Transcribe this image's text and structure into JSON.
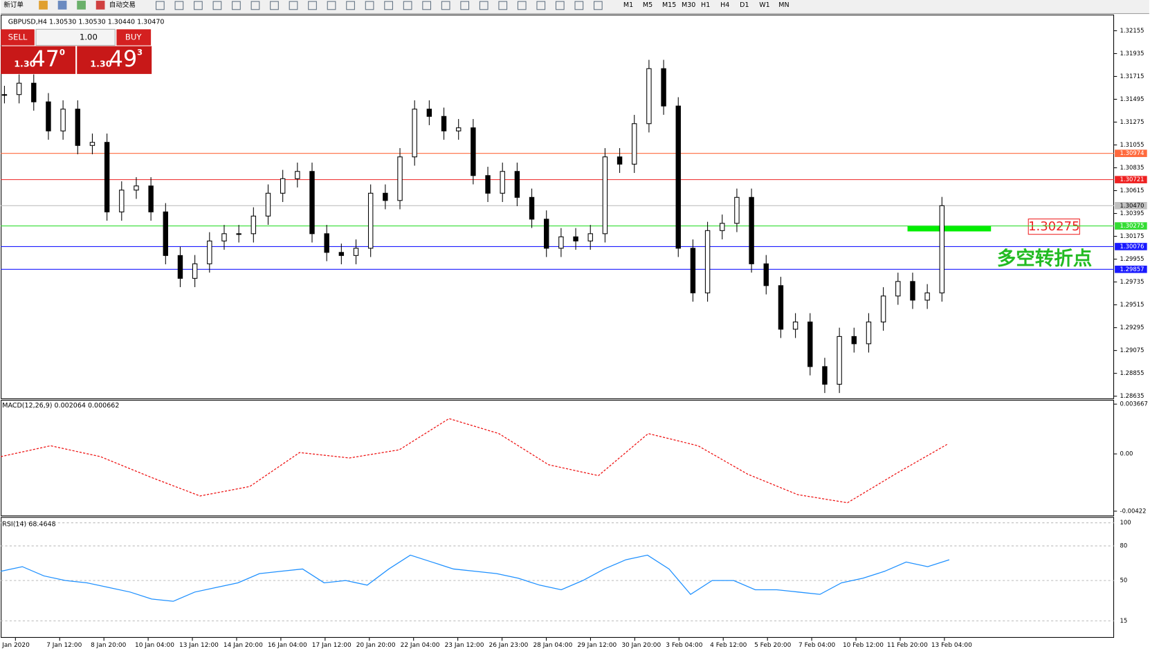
{
  "toolbar": {
    "new_order": "新订单",
    "auto_trading": "自动交易",
    "timeframes": [
      "M1",
      "M5",
      "M15",
      "M30",
      "H1",
      "H4",
      "D1",
      "W1",
      "MN"
    ]
  },
  "trade_panel": {
    "sell": "SELL",
    "buy": "BUY",
    "lot": "1.00",
    "sell_big": "1.30",
    "sell_pips": "47",
    "sell_frac": "0",
    "buy_big": "1.30",
    "buy_pips": "49",
    "buy_frac": "3"
  },
  "main_chart": {
    "header": "GBPUSD,H4  1.30530 1.30530 1.30440 1.30470",
    "ylim": [
      1.28614,
      1.32303
    ],
    "yticks": [
      1.32155,
      1.31935,
      1.31715,
      1.31495,
      1.31275,
      1.31055,
      1.30835,
      1.30615,
      1.30395,
      1.30175,
      1.29955,
      1.29735,
      1.29515,
      1.29295,
      1.29075,
      1.28855,
      1.28635
    ],
    "levels": [
      {
        "value": 1.30974,
        "color": "#ff6a3d"
      },
      {
        "value": 1.30721,
        "color": "#ee2222"
      },
      {
        "value": {
          "value": 1.3047,
          "label": "1.30470"
        },
        "color": "#c0c0c0"
      },
      {
        "value": 1.30275,
        "color": "#33dd33"
      },
      {
        "value": 1.30076,
        "color": "#1a1aff"
      },
      {
        "value": 1.29857,
        "color": "#1a1aff"
      }
    ],
    "closes": [
      1.3154,
      1.3165,
      1.3147,
      1.3119,
      1.314,
      1.3105,
      1.3108,
      1.3041,
      1.3062,
      1.3066,
      1.3041,
      1.2999,
      1.2977,
      1.2991,
      1.3013,
      1.302,
      1.302,
      1.3037,
      1.3059,
      1.3073,
      1.308,
      1.302,
      1.3002,
      1.2999,
      1.3006,
      1.3059,
      1.3052,
      1.3094,
      1.314,
      1.3133,
      1.3119,
      1.3122,
      1.3076,
      1.3059,
      1.308,
      1.3055,
      1.3034,
      1.3006,
      1.3017,
      1.3013,
      1.302,
      1.3094,
      1.3087,
      1.3126,
      1.3179,
      1.3143,
      1.3006,
      1.2963,
      1.3023,
      1.303,
      1.3055,
      1.2991,
      1.297,
      1.2928,
      1.2935,
      1.2892,
      1.2875,
      1.2921,
      1.2914,
      1.2935,
      1.296,
      1.2974,
      1.2956,
      1.2963,
      1.3047
    ],
    "annotation_price": "1.30275",
    "annotation_text": "多空转折点"
  },
  "macd": {
    "label": "MACD(12,26,9) 0.002064 0.000662",
    "ylim": [
      -0.00454,
      0.00393
    ],
    "yticks": [
      0.003667,
      {
        "value": 0,
        "label": "0.00"
      },
      -0.00422
    ],
    "signal": [
      -0.0002,
      0.0006,
      -0.0002,
      -0.0017,
      -0.0031,
      -0.0024,
      0.0001,
      -0.0003,
      0.0003,
      0.0026,
      0.0015,
      -0.0008,
      -0.0016,
      0.0015,
      0.0006,
      -0.0015,
      -0.003,
      -0.0036,
      -0.0014,
      0.0007
    ]
  },
  "rsi": {
    "label": "RSI(14) 68.4648",
    "ylim": [
      1,
      104.4
    ],
    "yticks": [
      100,
      80,
      50,
      15
    ],
    "values": [
      58,
      62,
      54,
      50,
      48,
      44,
      40,
      34,
      32,
      40,
      44,
      48,
      56,
      58,
      60,
      48,
      50,
      46,
      60,
      72,
      66,
      60,
      58,
      56,
      52,
      46,
      42,
      50,
      60,
      68,
      72,
      60,
      38,
      50,
      50,
      42,
      42,
      40,
      38,
      48,
      52,
      58,
      66,
      62,
      68
    ]
  },
  "dates": [
    "Jan 2020",
    "7 Jan 12:00",
    "8 Jan 20:00",
    "10 Jan 04:00",
    "13 Jan 12:00",
    "14 Jan 20:00",
    "16 Jan 04:00",
    "17 Jan 12:00",
    "20 Jan 20:00",
    "22 Jan 04:00",
    "23 Jan 12:00",
    "26 Jan 23:00",
    "28 Jan 04:00",
    "29 Jan 12:00",
    "30 Jan 20:00",
    "3 Feb 04:00",
    "4 Feb 12:00",
    "5 Feb 20:00",
    "7 Feb 04:00",
    "10 Feb 12:00",
    "11 Feb 20:00",
    "13 Feb 04:00"
  ]
}
